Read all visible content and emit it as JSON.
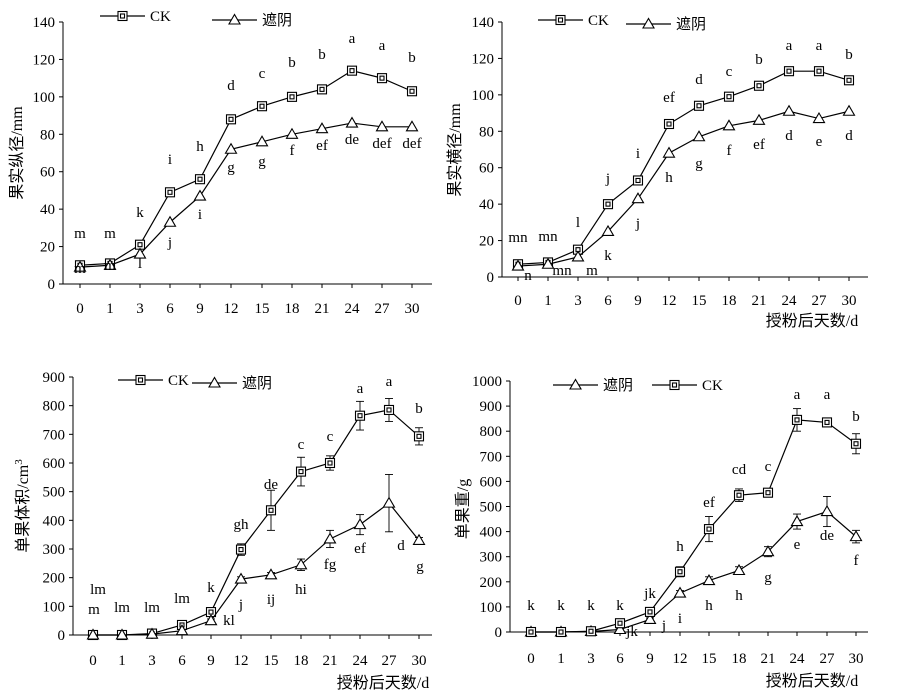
{
  "chart_data": [
    {
      "type": "line",
      "xlabel": "",
      "ylabel": "果实纵径/mm",
      "ylim": [
        0,
        140
      ],
      "yticks": [
        0,
        20,
        40,
        60,
        80,
        100,
        120,
        140
      ],
      "categories": [
        "0",
        "1",
        "3",
        "6",
        "9",
        "12",
        "15",
        "18",
        "21",
        "24",
        "27",
        "30"
      ],
      "legend": "top-left",
      "series": [
        {
          "name": "CK",
          "marker": "square",
          "values": [
            10,
            11,
            21,
            49,
            56,
            88,
            95,
            100,
            104,
            114,
            110,
            103
          ],
          "letters": [
            "m",
            "m",
            "k",
            "i",
            "h",
            "d",
            "c",
            "b",
            "b",
            "a",
            "a",
            "b"
          ]
        },
        {
          "name": "遮阴",
          "marker": "triangle",
          "values": [
            9,
            10,
            16,
            33,
            47,
            72,
            76,
            80,
            83,
            86,
            84,
            84
          ],
          "letters": [
            "m",
            "m",
            "l",
            "j",
            "i",
            "g",
            "g",
            "f",
            "ef",
            "de",
            "def",
            "def"
          ]
        }
      ]
    },
    {
      "type": "line",
      "xlabel": "授粉后天数/d",
      "ylabel": "果实横径/mm",
      "ylim": [
        0,
        140
      ],
      "yticks": [
        0,
        20,
        40,
        60,
        80,
        100,
        120,
        140
      ],
      "categories": [
        "0",
        "1",
        "3",
        "6",
        "9",
        "12",
        "15",
        "18",
        "21",
        "24",
        "27",
        "30"
      ],
      "legend": "top-left",
      "series": [
        {
          "name": "CK",
          "marker": "square",
          "values": [
            7,
            8,
            15,
            40,
            53,
            84,
            94,
            99,
            105,
            113,
            113,
            108
          ],
          "letters": [
            "mn",
            "mn",
            "l",
            "j",
            "i",
            "ef",
            "d",
            "c",
            "b",
            "a",
            "a",
            "b"
          ]
        },
        {
          "name": "遮阴",
          "marker": "triangle",
          "values": [
            6,
            7,
            11,
            25,
            43,
            68,
            77,
            83,
            86,
            91,
            87,
            91
          ],
          "letters": [
            "n",
            "mn",
            "m",
            "k",
            "j",
            "h",
            "g",
            "f",
            "ef",
            "d",
            "e",
            "d"
          ]
        }
      ]
    },
    {
      "type": "line",
      "xlabel": "授粉后天数/d",
      "ylabel": "单果体积/cm",
      "ylabel_sup": "3",
      "ylim": [
        0,
        900
      ],
      "yticks": [
        0,
        100,
        200,
        300,
        400,
        500,
        600,
        700,
        800,
        900
      ],
      "categories": [
        "0",
        "1",
        "3",
        "6",
        "9",
        "12",
        "15",
        "18",
        "21",
        "24",
        "27",
        "30"
      ],
      "legend": "top-left",
      "series": [
        {
          "name": "CK",
          "marker": "square",
          "values": [
            0,
            0,
            5,
            35,
            80,
            298,
            435,
            570,
            600,
            765,
            785,
            693
          ],
          "errors": [
            0,
            0,
            2,
            8,
            10,
            20,
            70,
            50,
            25,
            50,
            40,
            30
          ],
          "letters": [
            "lm",
            "lm",
            "lm",
            "lm",
            "k",
            "gh",
            "de",
            "c",
            "c",
            "a",
            "a",
            "b"
          ]
        },
        {
          "name": "遮阴",
          "marker": "triangle",
          "values": [
            0,
            0,
            3,
            15,
            50,
            195,
            210,
            245,
            335,
            385,
            460,
            330
          ],
          "errors": [
            0,
            0,
            1,
            4,
            6,
            8,
            8,
            20,
            30,
            35,
            100,
            10
          ],
          "letters": [
            "m",
            "",
            "",
            "",
            "kl",
            "j",
            "ij",
            "hi",
            "fg",
            "ef",
            "d",
            "g"
          ]
        }
      ]
    },
    {
      "type": "line",
      "xlabel": "授粉后天数/d",
      "ylabel": "单果重/g",
      "ylim": [
        0,
        1000
      ],
      "yticks": [
        0,
        100,
        200,
        300,
        400,
        500,
        600,
        700,
        800,
        900,
        1000
      ],
      "categories": [
        "0",
        "1",
        "3",
        "6",
        "9",
        "12",
        "15",
        "18",
        "21",
        "24",
        "27",
        "30"
      ],
      "legend": "top-left",
      "series": [
        {
          "name": "遮阴",
          "marker": "triangle",
          "values": [
            0,
            0,
            2,
            10,
            50,
            155,
            205,
            245,
            320,
            440,
            480,
            380
          ],
          "errors": [
            0,
            0,
            1,
            3,
            6,
            10,
            15,
            15,
            20,
            30,
            60,
            25
          ],
          "letters": [
            "",
            "",
            "",
            "jk",
            "j",
            "i",
            "h",
            "h",
            "g",
            "e",
            "de",
            "f"
          ]
        },
        {
          "name": "CK",
          "marker": "square",
          "values": [
            0,
            0,
            3,
            35,
            80,
            240,
            410,
            545,
            555,
            845,
            835,
            750
          ],
          "errors": [
            0,
            0,
            1,
            5,
            8,
            20,
            50,
            25,
            15,
            45,
            10,
            40
          ],
          "letters": [
            "k",
            "k",
            "k",
            "k",
            "jk",
            "h",
            "ef",
            "cd",
            "c",
            "a",
            "a",
            "b"
          ]
        }
      ]
    }
  ]
}
